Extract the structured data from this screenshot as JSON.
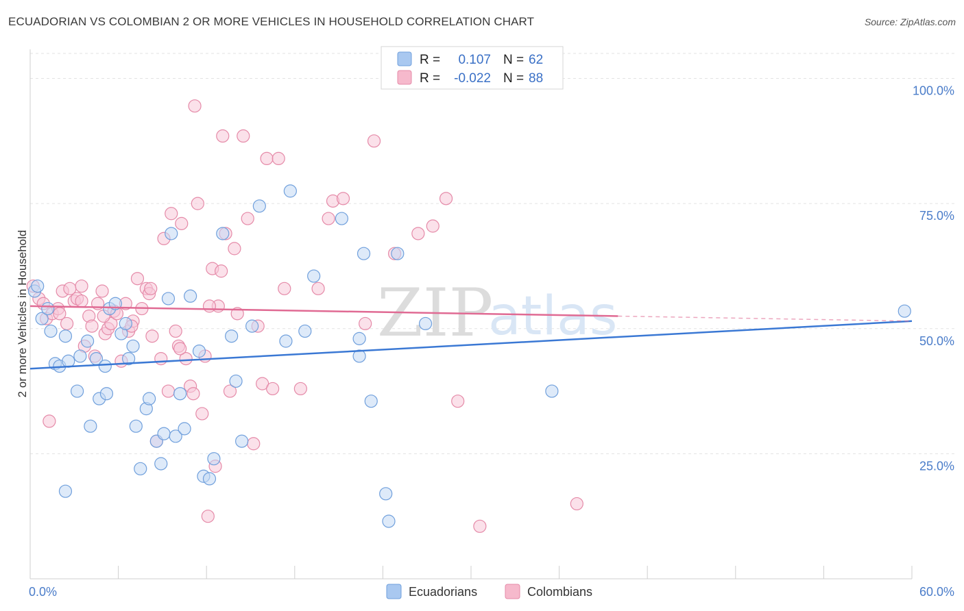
{
  "header": {
    "title": "ECUADORIAN VS COLOMBIAN 2 OR MORE VEHICLES IN HOUSEHOLD CORRELATION CHART",
    "source": "Source: ZipAtlas.com"
  },
  "watermark": {
    "zip": "ZIP",
    "atlas": "atlas"
  },
  "legend": {
    "rows": [
      {
        "r_label": "R =",
        "r_value": "0.107",
        "n_label": "N =",
        "n_value": "62",
        "color": "#a9c8f0"
      },
      {
        "r_label": "R =",
        "r_value": "-0.022",
        "n_label": "N =",
        "n_value": "88",
        "color": "#f6b9cc"
      }
    ]
  },
  "chart_data": {
    "type": "scatter",
    "title": "ECUADORIAN VS COLOMBIAN 2 OR MORE VEHICLES IN HOUSEHOLD CORRELATION CHART",
    "xlabel": "",
    "ylabel": "2 or more Vehicles in Household",
    "xlim": [
      0,
      60
    ],
    "ylim": [
      0,
      105
    ],
    "x_tick_labels": [
      "0.0%",
      "60.0%"
    ],
    "y_ticks": [
      25,
      50,
      75,
      100
    ],
    "y_tick_labels": [
      "25.0%",
      "50.0%",
      "75.0%",
      "100.0%"
    ],
    "grid": true,
    "colors": {
      "ecuadorians": "#3a78d4",
      "colombians": "#e06a93"
    },
    "series": [
      {
        "name": "Ecuadorians",
        "r": 0.107,
        "n": 62,
        "trend": {
          "x0": 0,
          "y0": 42.0,
          "x1": 60,
          "y1": 51.5
        },
        "points": [
          [
            0.3,
            57.5
          ],
          [
            0.5,
            58.5
          ],
          [
            0.8,
            52
          ],
          [
            1.2,
            54
          ],
          [
            1.4,
            49.5
          ],
          [
            1.7,
            43
          ],
          [
            2,
            42.5
          ],
          [
            2.4,
            48.5
          ],
          [
            2.6,
            43.5
          ],
          [
            3.2,
            37.5
          ],
          [
            3.4,
            44.5
          ],
          [
            3.9,
            47.5
          ],
          [
            4.1,
            30.5
          ],
          [
            4.5,
            44
          ],
          [
            4.7,
            36
          ],
          [
            5.1,
            42.5
          ],
          [
            5.2,
            37
          ],
          [
            5.4,
            54
          ],
          [
            5.8,
            55
          ],
          [
            6.2,
            49
          ],
          [
            6.5,
            51
          ],
          [
            6.7,
            44
          ],
          [
            7.0,
            46.5
          ],
          [
            7.2,
            30.5
          ],
          [
            7.5,
            22
          ],
          [
            7.9,
            34
          ],
          [
            8.1,
            36
          ],
          [
            8.6,
            27.5
          ],
          [
            8.9,
            23
          ],
          [
            9.1,
            29
          ],
          [
            9.4,
            56
          ],
          [
            9.6,
            69
          ],
          [
            9.9,
            28.5
          ],
          [
            10.2,
            37
          ],
          [
            10.5,
            30
          ],
          [
            10.9,
            56.5
          ],
          [
            11.5,
            45.5
          ],
          [
            11.8,
            20.5
          ],
          [
            12.2,
            20
          ],
          [
            12.5,
            24
          ],
          [
            13.1,
            69
          ],
          [
            13.7,
            48.5
          ],
          [
            14.0,
            39.5
          ],
          [
            14.4,
            27.5
          ],
          [
            15.1,
            50.5
          ],
          [
            15.6,
            74.5
          ],
          [
            17.4,
            47.5
          ],
          [
            17.7,
            77.5
          ],
          [
            18.7,
            49.5
          ],
          [
            19.3,
            60.5
          ],
          [
            21.2,
            72
          ],
          [
            22.4,
            48
          ],
          [
            22.4,
            44.5
          ],
          [
            22.7,
            65
          ],
          [
            23.2,
            35.5
          ],
          [
            24.2,
            17
          ],
          [
            24.4,
            11.5
          ],
          [
            25.0,
            65
          ],
          [
            26.9,
            51
          ],
          [
            35.5,
            37.5
          ],
          [
            59.5,
            53.5
          ],
          [
            2.4,
            17.5
          ]
        ]
      },
      {
        "name": "Colombians",
        "r": -0.022,
        "n": 88,
        "trend": {
          "x0": 0,
          "y0": 54.5,
          "x1": 40,
          "y1": 52.5
        },
        "dashed_trend": {
          "x0": 40,
          "y0": 52.5,
          "x1": 60,
          "y1": 51.5
        },
        "points": [
          [
            0.2,
            58.5
          ],
          [
            0.6,
            56
          ],
          [
            0.9,
            55
          ],
          [
            1.1,
            52
          ],
          [
            1.3,
            31.5
          ],
          [
            1.5,
            53
          ],
          [
            1.9,
            54
          ],
          [
            2.2,
            57.5
          ],
          [
            2.5,
            51
          ],
          [
            2.7,
            58
          ],
          [
            3.0,
            55.5
          ],
          [
            3.2,
            56
          ],
          [
            3.5,
            58.5
          ],
          [
            3.7,
            46.5
          ],
          [
            4.0,
            52.5
          ],
          [
            4.2,
            50.5
          ],
          [
            4.4,
            44.5
          ],
          [
            4.6,
            55
          ],
          [
            4.9,
            57.5
          ],
          [
            5.1,
            49
          ],
          [
            5.3,
            50
          ],
          [
            5.5,
            51
          ],
          [
            5.7,
            53.5
          ],
          [
            5.9,
            53
          ],
          [
            6.2,
            43.5
          ],
          [
            6.5,
            55
          ],
          [
            6.7,
            49.5
          ],
          [
            7.0,
            51.5
          ],
          [
            7.3,
            60
          ],
          [
            7.6,
            54
          ],
          [
            7.9,
            58
          ],
          [
            8.1,
            57
          ],
          [
            8.3,
            48.5
          ],
          [
            8.6,
            27.5
          ],
          [
            8.9,
            44
          ],
          [
            9.1,
            68
          ],
          [
            9.4,
            37.5
          ],
          [
            9.6,
            73
          ],
          [
            9.9,
            49.5
          ],
          [
            10.1,
            46.5
          ],
          [
            10.3,
            71
          ],
          [
            10.6,
            44
          ],
          [
            10.9,
            38.5
          ],
          [
            11.1,
            37
          ],
          [
            11.4,
            75
          ],
          [
            11.7,
            33
          ],
          [
            11.9,
            44.5
          ],
          [
            12.1,
            12.5
          ],
          [
            12.4,
            62
          ],
          [
            12.6,
            22.5
          ],
          [
            12.8,
            54.5
          ],
          [
            13.0,
            61.5
          ],
          [
            13.3,
            69
          ],
          [
            13.6,
            37.5
          ],
          [
            13.9,
            66
          ],
          [
            14.1,
            53
          ],
          [
            14.5,
            88.5
          ],
          [
            14.8,
            72
          ],
          [
            15.2,
            27
          ],
          [
            15.5,
            50.5
          ],
          [
            15.8,
            39
          ],
          [
            16.1,
            84
          ],
          [
            16.5,
            38
          ],
          [
            16.9,
            84
          ],
          [
            17.3,
            58
          ],
          [
            18.4,
            38
          ],
          [
            19.6,
            58
          ],
          [
            20.3,
            72
          ],
          [
            20.6,
            75.5
          ],
          [
            21.3,
            76
          ],
          [
            22.8,
            51
          ],
          [
            23.4,
            87.5
          ],
          [
            24.8,
            65
          ],
          [
            26.4,
            69
          ],
          [
            27.4,
            70.5
          ],
          [
            28.3,
            76
          ],
          [
            29.1,
            35.5
          ],
          [
            30.6,
            10.5
          ],
          [
            37.2,
            15
          ],
          [
            11.2,
            94.5
          ],
          [
            13.1,
            88.5
          ],
          [
            6.9,
            50.5
          ],
          [
            5.0,
            52.5
          ],
          [
            3.5,
            55.5
          ],
          [
            2.0,
            53
          ],
          [
            8.2,
            58
          ],
          [
            10.2,
            46
          ],
          [
            12.2,
            54.5
          ]
        ]
      }
    ]
  },
  "bottom_legend": [
    {
      "label": "Ecuadorians",
      "color": "#a9c8f0"
    },
    {
      "label": "Colombians",
      "color": "#f6b9cc"
    }
  ]
}
